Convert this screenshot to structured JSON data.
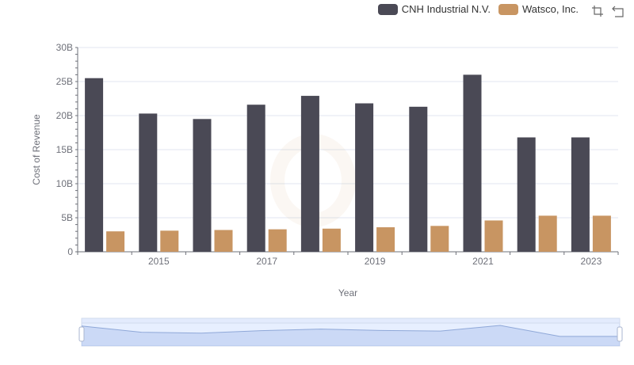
{
  "legend": [
    {
      "name": "CNH Industrial N.V.",
      "color": "#4a4955"
    },
    {
      "name": "Watsco, Inc.",
      "color": "#c89562"
    }
  ],
  "toolbox": {
    "zoom_icon": "zoom-icon",
    "restore_icon": "restore-icon"
  },
  "chart_data": {
    "type": "bar",
    "x": [
      2014,
      2015,
      2016,
      2017,
      2018,
      2019,
      2020,
      2021,
      2022,
      2023
    ],
    "x_tick_labels": [
      "2015",
      "2017",
      "2019",
      "2021",
      "2023"
    ],
    "series": [
      {
        "name": "CNH Industrial N.V.",
        "color": "#4a4955",
        "values": [
          25.5,
          20.3,
          19.5,
          21.6,
          22.9,
          21.8,
          21.3,
          26.0,
          16.8,
          16.8
        ]
      },
      {
        "name": "Watsco, Inc.",
        "color": "#c89562",
        "values": [
          3.0,
          3.1,
          3.2,
          3.3,
          3.4,
          3.6,
          3.8,
          4.6,
          5.3,
          5.3
        ]
      }
    ],
    "ylabel": "Cost of Revenue",
    "xlabel": "Year",
    "y_tick_labels": [
      "0",
      "5B",
      "10B",
      "15B",
      "20B",
      "25B",
      "30B"
    ],
    "ylim": [
      0,
      30
    ],
    "grid": true,
    "legend_position": "top-right"
  }
}
